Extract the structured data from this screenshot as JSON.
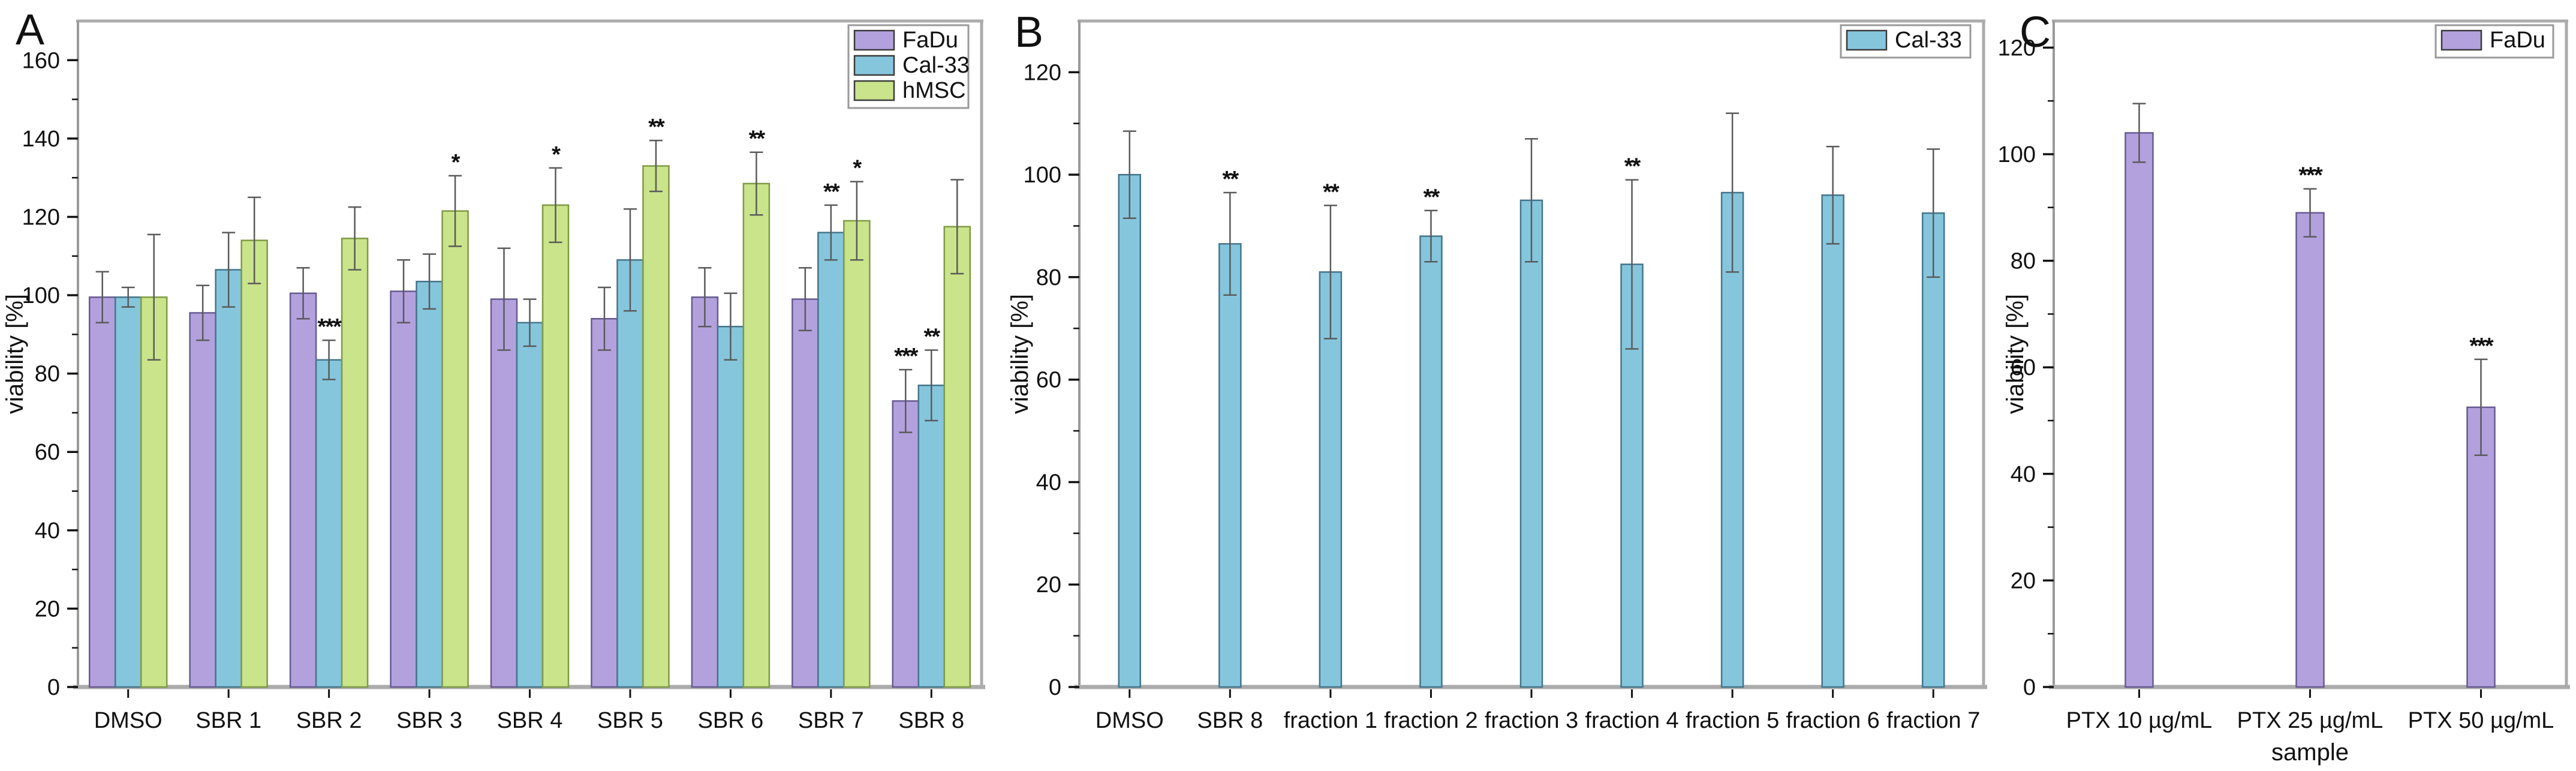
{
  "figure": {
    "background": "#ffffff",
    "frame_color": "#ababab",
    "axis_line_color": "#9a9a9a",
    "tick_color": "#111111",
    "text_color": "#111111",
    "errorbar_color": "#5a5a5a",
    "significance_color": "#111111",
    "ylabel": "viability [%]"
  },
  "chart_data": [
    {
      "panel_label": "A",
      "type": "bar",
      "title": "",
      "xlabel": "",
      "ylabel": "viability [%]",
      "ylim": [
        0,
        170
      ],
      "ytick_step": 20,
      "ytick_label_max": 160,
      "grid": false,
      "legend_position": "top-right",
      "categories": [
        "DMSO",
        "SBR 1",
        "SBR 2",
        "SBR 3",
        "SBR 4",
        "SBR 5",
        "SBR 6",
        "SBR 7",
        "SBR 8"
      ],
      "series": [
        {
          "name": "FaDu",
          "color": "#b3a1de",
          "edge_color": "#665a90",
          "values": [
            99.5,
            95.5,
            100.5,
            101,
            99,
            94,
            99.5,
            99,
            73
          ],
          "errors": [
            6.5,
            7,
            6.5,
            8,
            13,
            8,
            7.5,
            8,
            8
          ],
          "significance": [
            "",
            "",
            "",
            "",
            "",
            "",
            "",
            "",
            "***"
          ]
        },
        {
          "name": "Cal-33",
          "color": "#85c6dd",
          "edge_color": "#44758a",
          "values": [
            99.5,
            106.5,
            83.5,
            103.5,
            93,
            109,
            92,
            116,
            77
          ],
          "errors": [
            2.5,
            9.5,
            5,
            7,
            6,
            13,
            8.5,
            7,
            9
          ],
          "significance": [
            "",
            "",
            "***",
            "",
            "",
            "",
            "",
            "**",
            "**"
          ]
        },
        {
          "name": "hMSC",
          "color": "#c9e48a",
          "edge_color": "#7f9a44",
          "values": [
            99.5,
            114,
            114.5,
            121.5,
            123,
            133,
            128.5,
            119,
            117.5
          ],
          "errors": [
            16,
            11,
            8,
            9,
            9.5,
            6.5,
            8,
            10,
            12
          ],
          "significance": [
            "",
            "",
            "",
            "*",
            "*",
            "**",
            "**",
            "*",
            ""
          ]
        }
      ]
    },
    {
      "panel_label": "B",
      "type": "bar",
      "title": "",
      "xlabel": "",
      "ylabel": "viability [%]",
      "ylim": [
        0,
        130
      ],
      "ytick_step": 20,
      "ytick_label_max": 120,
      "grid": false,
      "legend_position": "top-right",
      "categories": [
        "DMSO",
        "SBR 8",
        "fraction 1",
        "fraction 2",
        "fraction 3",
        "fraction 4",
        "fraction 5",
        "fraction 6",
        "fraction 7"
      ],
      "series": [
        {
          "name": "Cal-33",
          "color": "#85c6dd",
          "edge_color": "#44758a",
          "values": [
            100,
            86.5,
            81,
            88,
            95,
            82.5,
            96.5,
            96,
            92.5
          ],
          "errors": [
            8.5,
            10,
            13,
            5,
            12,
            16.5,
            15.5,
            9.5,
            12.5
          ],
          "significance": [
            "",
            "**",
            "**",
            "**",
            "",
            "**",
            "",
            "",
            ""
          ]
        }
      ]
    },
    {
      "panel_label": "C",
      "type": "bar",
      "title": "",
      "xlabel": "sample",
      "ylabel": "viability [%]",
      "ylim": [
        0,
        125
      ],
      "ytick_step": 20,
      "ytick_label_max": 120,
      "grid": false,
      "legend_position": "top-right",
      "categories": [
        "PTX 10 µg/mL",
        "PTX 25 µg/mL",
        "PTX 50 µg/mL"
      ],
      "series": [
        {
          "name": "FaDu",
          "color": "#b3a1de",
          "edge_color": "#665a90",
          "values": [
            104,
            89,
            52.5
          ],
          "errors": [
            5.5,
            4.5,
            9
          ],
          "significance": [
            "",
            "***",
            "***"
          ]
        }
      ]
    }
  ]
}
